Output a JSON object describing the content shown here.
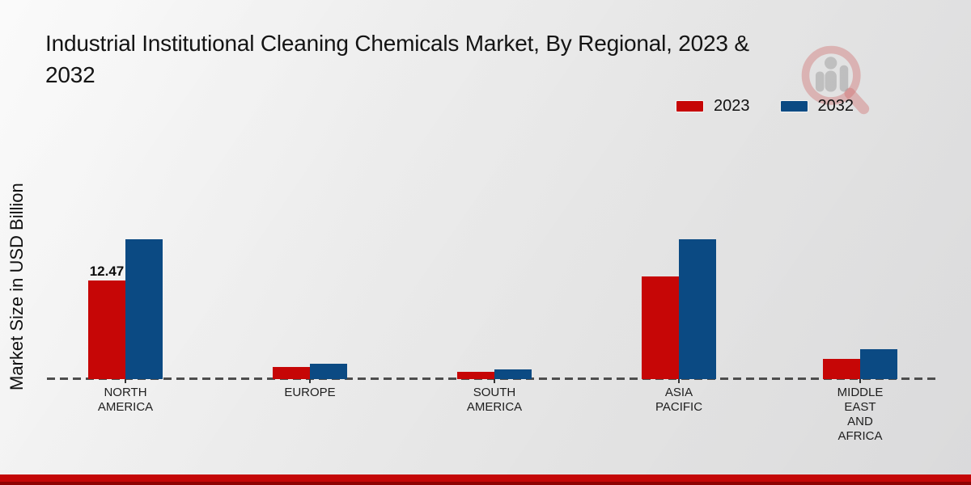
{
  "header": {
    "title_line1": "Industrial Institutional Cleaning Chemicals Market, By Regional, 2023 &",
    "title_line2": "2032"
  },
  "watermark": {
    "name": "market-research-future-logo"
  },
  "legend": {
    "items": [
      {
        "label": "2023",
        "color": "#c60606"
      },
      {
        "label": "2032",
        "color": "#0b4a83"
      }
    ]
  },
  "y_axis": {
    "label": "Market Size in USD Billion"
  },
  "chart_data": {
    "type": "bar",
    "title": "Industrial Institutional Cleaning Chemicals Market, By Regional, 2023 & 2032",
    "ylabel": "Market Size in USD Billion",
    "xlabel": "",
    "categories": [
      "NORTH AMERICA",
      "EUROPE",
      "SOUTH AMERICA",
      "ASIA PACIFIC",
      "MIDDLE EAST AND AFRICA"
    ],
    "category_label_lines": [
      [
        "NORTH",
        "AMERICA"
      ],
      [
        "EUROPE"
      ],
      [
        "SOUTH",
        "AMERICA"
      ],
      [
        "ASIA",
        "PACIFIC"
      ],
      [
        "MIDDLE",
        "EAST",
        "AND",
        "AFRICA"
      ]
    ],
    "series": [
      {
        "name": "2023",
        "color": "#c60606",
        "values": [
          12.47,
          1.5,
          0.9,
          13.0,
          2.6
        ]
      },
      {
        "name": "2032",
        "color": "#0b4a83",
        "values": [
          17.7,
          1.9,
          1.2,
          17.7,
          3.8
        ]
      }
    ],
    "data_labels": [
      {
        "series_index": 0,
        "category_index": 0,
        "text": "12.47"
      }
    ],
    "ylim": [
      0,
      20
    ],
    "grid": false,
    "baseline_style": "dashed",
    "legend_position": "top-right"
  },
  "footer": {
    "band_colors": [
      "#c40707",
      "#8e0202"
    ]
  }
}
